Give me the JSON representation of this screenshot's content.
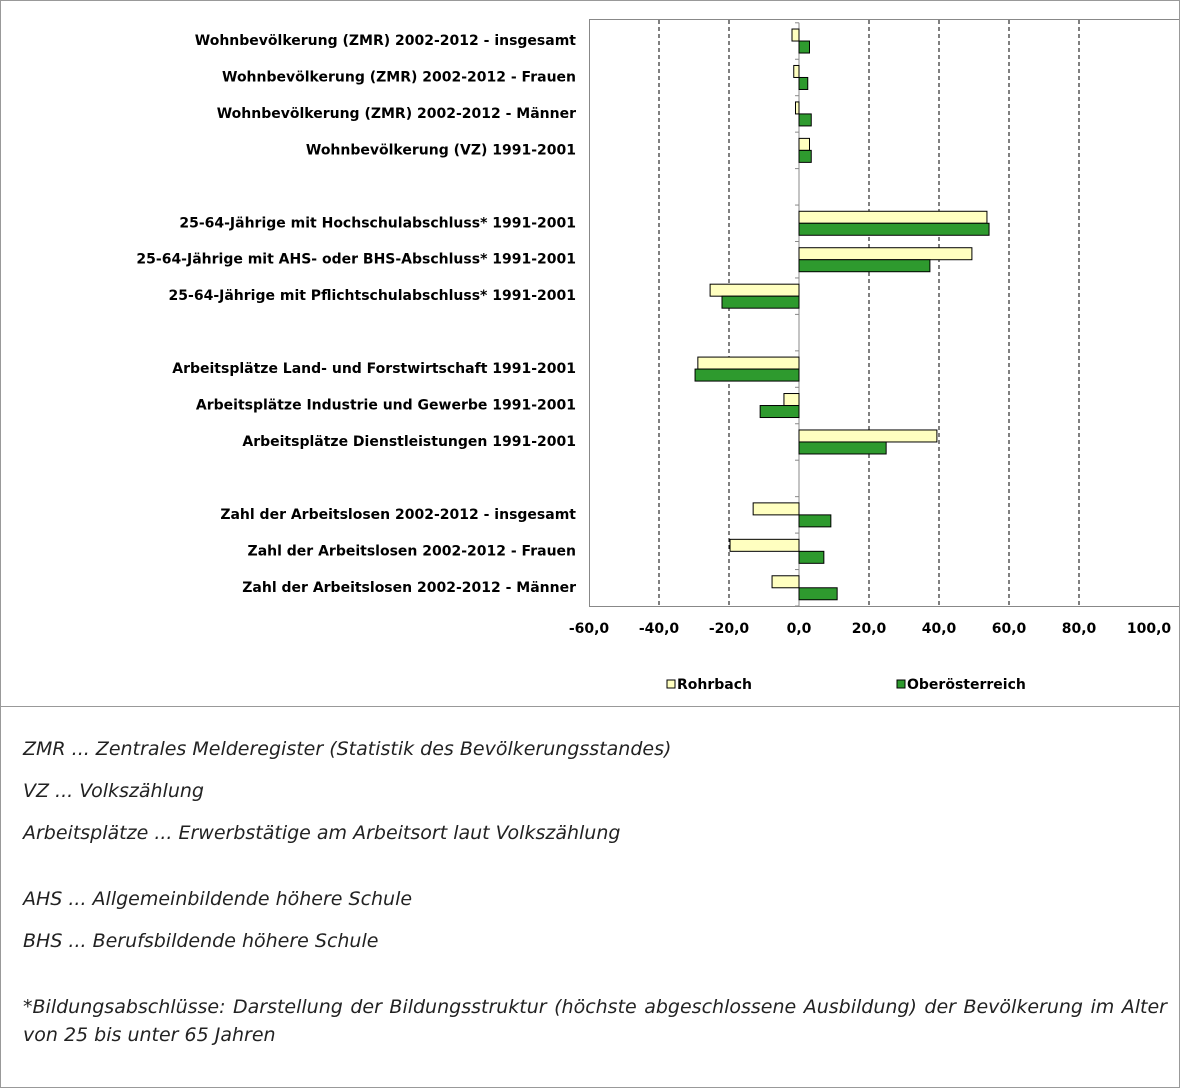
{
  "chart_data": {
    "type": "hbar",
    "categories": [
      "Wohnbevölkerung (ZMR) 2002-2012 - insgesamt",
      "Wohnbevölkerung (ZMR) 2002-2012 - Frauen",
      "Wohnbevölkerung (ZMR) 2002-2012 - Männer",
      "Wohnbevölkerung (VZ) 1991-2001",
      null,
      "25-64-Jährige mit Hochschulabschluss* 1991-2001",
      "25-64-Jährige mit AHS- oder BHS-Abschluss* 1991-2001",
      "25-64-Jährige mit Pflichtschulabschluss* 1991-2001",
      null,
      "Arbeitsplätze Land- und Forstwirtschaft 1991-2001",
      "Arbeitsplätze Industrie und Gewerbe 1991-2001",
      "Arbeitsplätze Dienstleistungen 1991-2001",
      null,
      "Zahl der Arbeitslosen 2002-2012 - insgesamt",
      "Zahl der Arbeitslosen 2002-2012 - Frauen",
      "Zahl der Arbeitslosen 2002-2012 - Männer"
    ],
    "series": [
      {
        "name": "Rohrbach",
        "color": "#ffffc0",
        "values": [
          -2,
          -1.5,
          -1,
          3,
          null,
          53.7,
          49.4,
          -25.4,
          null,
          -28.9,
          -4.3,
          39.4,
          null,
          -13.1,
          -19.7,
          -7.7
        ]
      },
      {
        "name": "Oberösterreich",
        "color": "#2e9a2e",
        "values": [
          3,
          2.5,
          3.5,
          3.5,
          null,
          54.3,
          37.4,
          -22,
          null,
          -29.7,
          -11.1,
          24.9,
          null,
          9.1,
          7.1,
          10.9
        ]
      }
    ],
    "xlim": [
      -60,
      100
    ],
    "xticks": [
      {
        "value": -60,
        "label": "-60,0"
      },
      {
        "value": -40,
        "label": "-40,0"
      },
      {
        "value": -20,
        "label": "-20,0"
      },
      {
        "value": 0,
        "label": "0,0"
      },
      {
        "value": 20,
        "label": "20,0"
      },
      {
        "value": 40,
        "label": "40,0"
      },
      {
        "value": 60,
        "label": "60,0"
      },
      {
        "value": 80,
        "label": "80,0"
      },
      {
        "value": 100,
        "label": "100,0"
      }
    ],
    "grid": true,
    "legend": "bottom"
  },
  "notes": [
    "ZMR ... Zentrales Melderegister (Statistik des Bevölkerungsstandes)",
    "VZ ... Volkszählung",
    "Arbeitsplätze ... Erwerbstätige am Arbeitsort laut Volkszählung",
    "AHS ... Allgemeinbildende höhere Schule",
    "BHS ... Berufsbildende höhere Schule",
    "*Bildungsabschlüsse: Darstellung der Bildungsstruktur (höchste abgeschlossene Ausbildung) der Bevölkerung im Alter von 25 bis unter 65 Jahren"
  ]
}
